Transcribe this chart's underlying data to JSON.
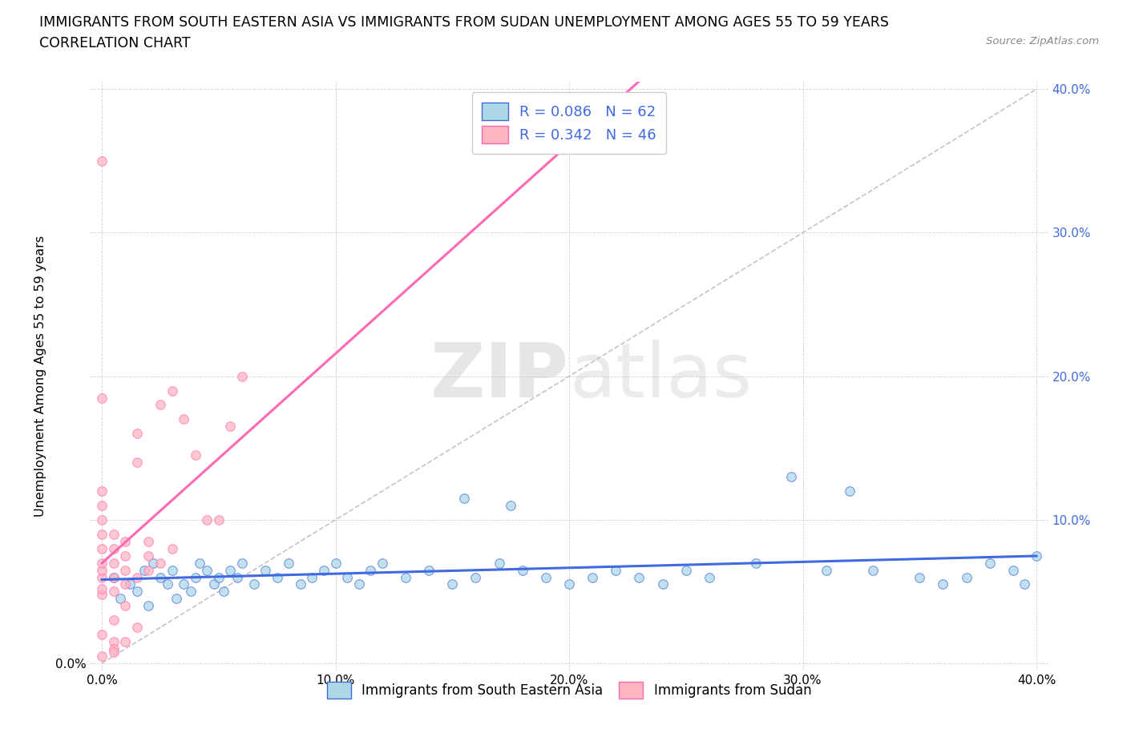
{
  "title_line1": "IMMIGRANTS FROM SOUTH EASTERN ASIA VS IMMIGRANTS FROM SUDAN UNEMPLOYMENT AMONG AGES 55 TO 59 YEARS",
  "title_line2": "CORRELATION CHART",
  "source_text": "Source: ZipAtlas.com",
  "ylabel": "Unemployment Among Ages 55 to 59 years",
  "xlim": [
    -0.005,
    0.405
  ],
  "ylim": [
    -0.005,
    0.405
  ],
  "xtick_vals": [
    0.0,
    0.1,
    0.2,
    0.3,
    0.4
  ],
  "xtick_labels": [
    "0.0%",
    "10.0%",
    "20.0%",
    "30.0%",
    "40.0%"
  ],
  "ytick_vals": [
    0.0,
    0.1,
    0.2,
    0.3,
    0.4
  ],
  "ytick_labels_left": [
    "0.0%",
    "",
    "",
    "",
    ""
  ],
  "ytick_labels_right": [
    "",
    "10.0%",
    "20.0%",
    "30.0%",
    "40.0%"
  ],
  "color_sea": "#ADD8E6",
  "color_sudan": "#FFB6C1",
  "line_color_sea": "#4169E1",
  "line_color_sudan": "#FF69B4",
  "diagonal_color": "#BEBEBE",
  "watermark_zip": "ZIP",
  "watermark_atlas": "atlas",
  "legend_text1": "Immigrants from South Eastern Asia",
  "legend_text2": "Immigrants from Sudan",
  "sea_x": [
    0.005,
    0.008,
    0.012,
    0.015,
    0.018,
    0.02,
    0.022,
    0.025,
    0.028,
    0.03,
    0.032,
    0.035,
    0.038,
    0.04,
    0.042,
    0.045,
    0.048,
    0.05,
    0.052,
    0.055,
    0.058,
    0.06,
    0.065,
    0.07,
    0.075,
    0.08,
    0.085,
    0.09,
    0.095,
    0.1,
    0.105,
    0.11,
    0.115,
    0.12,
    0.13,
    0.14,
    0.15,
    0.16,
    0.17,
    0.18,
    0.19,
    0.2,
    0.21,
    0.22,
    0.23,
    0.24,
    0.25,
    0.26,
    0.28,
    0.295,
    0.31,
    0.32,
    0.33,
    0.35,
    0.36,
    0.37,
    0.38,
    0.39,
    0.395,
    0.4,
    0.155,
    0.175
  ],
  "sea_y": [
    0.06,
    0.045,
    0.055,
    0.05,
    0.065,
    0.04,
    0.07,
    0.06,
    0.055,
    0.065,
    0.045,
    0.055,
    0.05,
    0.06,
    0.07,
    0.065,
    0.055,
    0.06,
    0.05,
    0.065,
    0.06,
    0.07,
    0.055,
    0.065,
    0.06,
    0.07,
    0.055,
    0.06,
    0.065,
    0.07,
    0.06,
    0.055,
    0.065,
    0.07,
    0.06,
    0.065,
    0.055,
    0.06,
    0.07,
    0.065,
    0.06,
    0.055,
    0.06,
    0.065,
    0.06,
    0.055,
    0.065,
    0.06,
    0.07,
    0.13,
    0.065,
    0.12,
    0.065,
    0.06,
    0.055,
    0.06,
    0.07,
    0.065,
    0.055,
    0.075,
    0.115,
    0.11
  ],
  "sudan_x": [
    0.0,
    0.0,
    0.0,
    0.0,
    0.0,
    0.0,
    0.0,
    0.0,
    0.0,
    0.0,
    0.005,
    0.005,
    0.005,
    0.005,
    0.005,
    0.01,
    0.01,
    0.01,
    0.01,
    0.015,
    0.015,
    0.015,
    0.02,
    0.02,
    0.02,
    0.025,
    0.025,
    0.03,
    0.03,
    0.035,
    0.04,
    0.045,
    0.05,
    0.055,
    0.06,
    0.0,
    0.005,
    0.01,
    0.015,
    0.0,
    0.005,
    0.0,
    0.005,
    0.0,
    0.01,
    0.005
  ],
  "sudan_y": [
    0.048,
    0.052,
    0.06,
    0.065,
    0.07,
    0.08,
    0.09,
    0.1,
    0.11,
    0.12,
    0.05,
    0.06,
    0.07,
    0.08,
    0.09,
    0.055,
    0.065,
    0.075,
    0.085,
    0.06,
    0.14,
    0.16,
    0.065,
    0.075,
    0.085,
    0.07,
    0.18,
    0.08,
    0.19,
    0.17,
    0.145,
    0.1,
    0.1,
    0.165,
    0.2,
    0.02,
    0.03,
    0.04,
    0.025,
    0.35,
    0.015,
    0.005,
    0.01,
    0.185,
    0.015,
    0.008
  ]
}
